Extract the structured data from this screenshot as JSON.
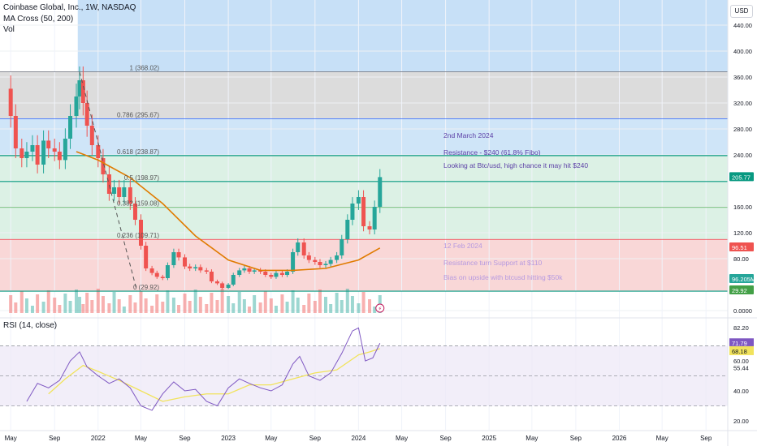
{
  "header": {
    "symbol_line": "Coinbase Global, Inc., 1W, NASDAQ",
    "indicator_ma": "MA Cross (50, 200)",
    "indicator_vol": "Vol",
    "indicator_rsi": "RSI (14, close)",
    "currency": "USD"
  },
  "colors": {
    "up": "#26a69a",
    "down": "#ef5350",
    "ma_line": "#e07b00",
    "rsi_line": "#7e57c2",
    "rsi_ma": "#f1e35c",
    "fib_top_zone": "#d6d6d6",
    "fib_blue_zone": "#c7e0f7",
    "fib_green_zone": "#d6efe0",
    "fib_red_zone": "#f8d0d0",
    "resistance_line": "#0b8f6a"
  },
  "chart_data": {
    "type": "candlestick",
    "x_tick_labels": [
      "May",
      "Sep",
      "2022",
      "May",
      "Sep",
      "2023",
      "May",
      "Sep",
      "2024",
      "May",
      "Sep",
      "2025",
      "May",
      "Sep",
      "2026",
      "May",
      "Sep"
    ],
    "x_tick_dates": [
      "2021-05-01",
      "2021-09-01",
      "2022-01-01",
      "2022-05-01",
      "2022-09-01",
      "2023-01-01",
      "2023-05-01",
      "2023-09-01",
      "2024-01-01",
      "2024-05-01",
      "2024-09-01",
      "2025-01-01",
      "2025-05-01",
      "2025-09-01",
      "2026-01-01",
      "2026-05-01",
      "2026-09-01"
    ],
    "price_axis": {
      "ticks": [
        440.0,
        400.0,
        360.0,
        320.0,
        280.0,
        240.0,
        160.0,
        120.0,
        80.0,
        0.0
      ],
      "range": [
        0,
        450
      ],
      "last_price_label": "205.77",
      "ma_value_label": "96.51",
      "volume_label": "96.205M",
      "support_label": "29.92"
    },
    "fibonacci_levels": [
      {
        "label": "1 (368.02)",
        "level": 1,
        "price": 368.02
      },
      {
        "label": "0.786 (295.67)",
        "level": 0.786,
        "price": 295.67
      },
      {
        "label": "0.618 (238.87)",
        "level": 0.618,
        "price": 238.87
      },
      {
        "label": "0.5 (198.97)",
        "level": 0.5,
        "price": 198.97
      },
      {
        "label": "0.382 (159.08)",
        "level": 0.382,
        "price": 159.08
      },
      {
        "label": "0.236 (109.71)",
        "level": 0.236,
        "price": 109.71
      },
      {
        "label": "0 (29.92)",
        "level": 0,
        "price": 29.92
      }
    ],
    "weekly_close": [
      {
        "date": "2021-04-16",
        "value": 342
      },
      {
        "date": "2021-05-01",
        "value": 300
      },
      {
        "date": "2021-05-15",
        "value": 250
      },
      {
        "date": "2021-06-01",
        "value": 235
      },
      {
        "date": "2021-06-15",
        "value": 245
      },
      {
        "date": "2021-07-01",
        "value": 255
      },
      {
        "date": "2021-07-15",
        "value": 225
      },
      {
        "date": "2021-08-01",
        "value": 262
      },
      {
        "date": "2021-08-15",
        "value": 250
      },
      {
        "date": "2021-09-01",
        "value": 245
      },
      {
        "date": "2021-09-15",
        "value": 232
      },
      {
        "date": "2021-10-01",
        "value": 265
      },
      {
        "date": "2021-10-15",
        "value": 300
      },
      {
        "date": "2021-11-01",
        "value": 330
      },
      {
        "date": "2021-11-10",
        "value": 355
      },
      {
        "date": "2021-11-20",
        "value": 320
      },
      {
        "date": "2021-12-01",
        "value": 285
      },
      {
        "date": "2021-12-15",
        "value": 255
      },
      {
        "date": "2022-01-01",
        "value": 235
      },
      {
        "date": "2022-01-15",
        "value": 210
      },
      {
        "date": "2022-02-01",
        "value": 180
      },
      {
        "date": "2022-02-15",
        "value": 190
      },
      {
        "date": "2022-03-01",
        "value": 175
      },
      {
        "date": "2022-03-15",
        "value": 190
      },
      {
        "date": "2022-04-01",
        "value": 165
      },
      {
        "date": "2022-04-15",
        "value": 140
      },
      {
        "date": "2022-05-01",
        "value": 100
      },
      {
        "date": "2022-05-15",
        "value": 65
      },
      {
        "date": "2022-06-01",
        "value": 58
      },
      {
        "date": "2022-06-15",
        "value": 52
      },
      {
        "date": "2022-07-01",
        "value": 50
      },
      {
        "date": "2022-07-15",
        "value": 70
      },
      {
        "date": "2022-08-01",
        "value": 90
      },
      {
        "date": "2022-08-15",
        "value": 82
      },
      {
        "date": "2022-09-01",
        "value": 68
      },
      {
        "date": "2022-09-15",
        "value": 65
      },
      {
        "date": "2022-10-01",
        "value": 67
      },
      {
        "date": "2022-10-15",
        "value": 62
      },
      {
        "date": "2022-11-01",
        "value": 60
      },
      {
        "date": "2022-11-15",
        "value": 45
      },
      {
        "date": "2022-12-01",
        "value": 42
      },
      {
        "date": "2022-12-15",
        "value": 35
      },
      {
        "date": "2023-01-01",
        "value": 40
      },
      {
        "date": "2023-01-15",
        "value": 55
      },
      {
        "date": "2023-02-01",
        "value": 62
      },
      {
        "date": "2023-02-15",
        "value": 65
      },
      {
        "date": "2023-03-01",
        "value": 60
      },
      {
        "date": "2023-03-15",
        "value": 62
      },
      {
        "date": "2023-04-01",
        "value": 60
      },
      {
        "date": "2023-04-15",
        "value": 55
      },
      {
        "date": "2023-05-01",
        "value": 52
      },
      {
        "date": "2023-05-15",
        "value": 58
      },
      {
        "date": "2023-06-01",
        "value": 55
      },
      {
        "date": "2023-06-15",
        "value": 60
      },
      {
        "date": "2023-07-01",
        "value": 90
      },
      {
        "date": "2023-07-15",
        "value": 105
      },
      {
        "date": "2023-08-01",
        "value": 85
      },
      {
        "date": "2023-08-15",
        "value": 78
      },
      {
        "date": "2023-09-01",
        "value": 75
      },
      {
        "date": "2023-09-15",
        "value": 70
      },
      {
        "date": "2023-10-01",
        "value": 72
      },
      {
        "date": "2023-10-15",
        "value": 78
      },
      {
        "date": "2023-11-01",
        "value": 85
      },
      {
        "date": "2023-11-15",
        "value": 110
      },
      {
        "date": "2023-12-01",
        "value": 140
      },
      {
        "date": "2023-12-15",
        "value": 165
      },
      {
        "date": "2024-01-01",
        "value": 175
      },
      {
        "date": "2024-01-15",
        "value": 130
      },
      {
        "date": "2024-02-01",
        "value": 125
      },
      {
        "date": "2024-02-15",
        "value": 160
      },
      {
        "date": "2024-03-01",
        "value": 205.77
      }
    ],
    "ma_50_week": [
      {
        "date": "2021-11-01",
        "value": 245
      },
      {
        "date": "2022-01-01",
        "value": 232
      },
      {
        "date": "2022-04-01",
        "value": 205
      },
      {
        "date": "2022-07-01",
        "value": 165
      },
      {
        "date": "2022-10-01",
        "value": 115
      },
      {
        "date": "2023-01-01",
        "value": 78
      },
      {
        "date": "2023-04-01",
        "value": 62
      },
      {
        "date": "2023-07-01",
        "value": 62
      },
      {
        "date": "2023-10-01",
        "value": 65
      },
      {
        "date": "2024-01-01",
        "value": 78
      },
      {
        "date": "2024-03-01",
        "value": 96.51
      }
    ],
    "rsi": {
      "axis_ticks": [
        82.2,
        71.79,
        68.18,
        60.0,
        55.44,
        40.0,
        20.0
      ],
      "range": [
        15,
        90
      ],
      "current_rsi_label": "71.79",
      "rsi_ma_label": "68.18",
      "overbought": 70,
      "middle": 50,
      "oversold": 30,
      "series": [
        {
          "date": "2021-06-15",
          "value": 33
        },
        {
          "date": "2021-07-15",
          "value": 45
        },
        {
          "date": "2021-08-15",
          "value": 42
        },
        {
          "date": "2021-09-15",
          "value": 47
        },
        {
          "date": "2021-10-15",
          "value": 60
        },
        {
          "date": "2021-11-10",
          "value": 66
        },
        {
          "date": "2021-12-01",
          "value": 56
        },
        {
          "date": "2022-01-01",
          "value": 50
        },
        {
          "date": "2022-02-01",
          "value": 45
        },
        {
          "date": "2022-03-01",
          "value": 48
        },
        {
          "date": "2022-04-01",
          "value": 42
        },
        {
          "date": "2022-05-01",
          "value": 30
        },
        {
          "date": "2022-06-01",
          "value": 27
        },
        {
          "date": "2022-07-01",
          "value": 38
        },
        {
          "date": "2022-08-01",
          "value": 46
        },
        {
          "date": "2022-09-01",
          "value": 40
        },
        {
          "date": "2022-10-01",
          "value": 41
        },
        {
          "date": "2022-11-01",
          "value": 33
        },
        {
          "date": "2022-12-01",
          "value": 30
        },
        {
          "date": "2023-01-01",
          "value": 42
        },
        {
          "date": "2023-02-01",
          "value": 48
        },
        {
          "date": "2023-03-01",
          "value": 45
        },
        {
          "date": "2023-04-01",
          "value": 42
        },
        {
          "date": "2023-05-01",
          "value": 40
        },
        {
          "date": "2023-06-01",
          "value": 44
        },
        {
          "date": "2023-07-01",
          "value": 58
        },
        {
          "date": "2023-07-20",
          "value": 63
        },
        {
          "date": "2023-08-15",
          "value": 50
        },
        {
          "date": "2023-09-15",
          "value": 47
        },
        {
          "date": "2023-10-15",
          "value": 52
        },
        {
          "date": "2023-11-15",
          "value": 65
        },
        {
          "date": "2023-12-15",
          "value": 80
        },
        {
          "date": "2024-01-01",
          "value": 82
        },
        {
          "date": "2024-01-20",
          "value": 60
        },
        {
          "date": "2024-02-10",
          "value": 62
        },
        {
          "date": "2024-03-01",
          "value": 71.79
        }
      ],
      "ma_series": [
        {
          "date": "2021-08-15",
          "value": 38
        },
        {
          "date": "2021-10-01",
          "value": 48
        },
        {
          "date": "2021-11-20",
          "value": 57
        },
        {
          "date": "2022-01-01",
          "value": 53
        },
        {
          "date": "2022-03-01",
          "value": 47
        },
        {
          "date": "2022-05-01",
          "value": 40
        },
        {
          "date": "2022-07-01",
          "value": 33
        },
        {
          "date": "2022-09-01",
          "value": 36
        },
        {
          "date": "2022-11-01",
          "value": 38
        },
        {
          "date": "2023-01-01",
          "value": 38
        },
        {
          "date": "2023-03-01",
          "value": 44
        },
        {
          "date": "2023-05-01",
          "value": 44
        },
        {
          "date": "2023-07-01",
          "value": 48
        },
        {
          "date": "2023-09-01",
          "value": 52
        },
        {
          "date": "2023-11-01",
          "value": 54
        },
        {
          "date": "2024-01-01",
          "value": 64
        },
        {
          "date": "2024-02-01",
          "value": 66
        },
        {
          "date": "2024-03-01",
          "value": 68.18
        }
      ]
    },
    "annotations": [
      {
        "text": "2nd March 2024"
      },
      {
        "text": "Resistance  - $240 (61.8% Fibo)"
      },
      {
        "text": "Looking at Btc/usd, high chance it may hit $240"
      },
      {
        "text": "12 Feb 2024"
      },
      {
        "text": "Resistance turn Support at $110"
      },
      {
        "text": "Bias on upside with btcusd hitting $50k"
      }
    ]
  }
}
